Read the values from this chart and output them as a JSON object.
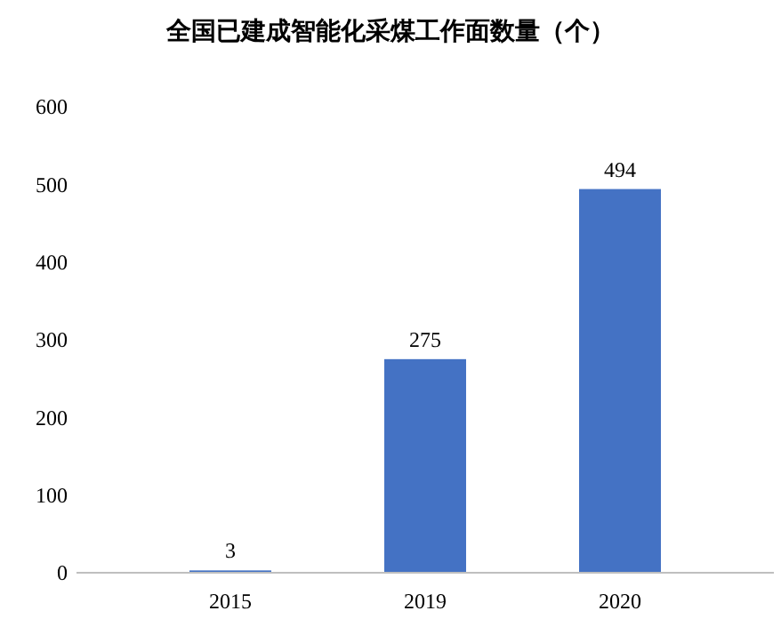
{
  "chart_data": {
    "type": "bar",
    "title": "全国已建成智能化采煤工作面数量（个）",
    "categories": [
      "2015",
      "2019",
      "2020"
    ],
    "values": [
      3,
      275,
      494
    ],
    "color": "#4472c4",
    "ylim": [
      0,
      600
    ],
    "yticks": [
      0,
      100,
      200,
      300,
      400,
      500,
      600
    ],
    "grid": false,
    "data_labels": true
  }
}
